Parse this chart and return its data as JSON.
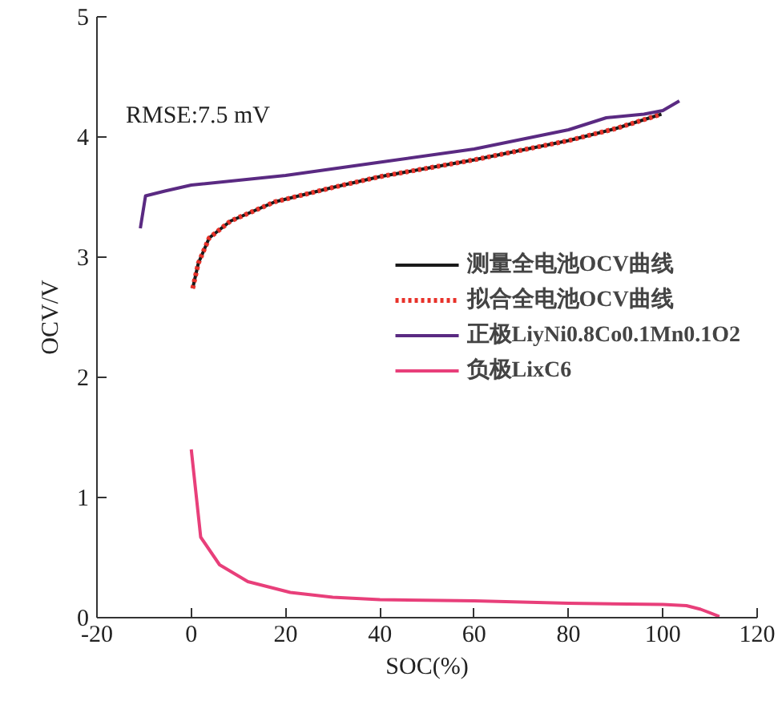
{
  "chart_data": {
    "type": "line",
    "xlabel": "SOC(%)",
    "ylabel": "OCV/V",
    "xlim": [
      -20,
      120
    ],
    "xticks": [
      -20,
      0,
      20,
      40,
      60,
      80,
      100,
      120
    ],
    "ylim": [
      0,
      5
    ],
    "yticks": [
      0,
      1,
      2,
      3,
      4,
      5
    ],
    "grid": false,
    "legend": "right",
    "annotations": [
      "RMSE:7.5 mV"
    ],
    "series": [
      {
        "name": "测量全电池OCV曲线",
        "color": "#1a1a1a",
        "line_style": "solid",
        "x": [
          0.3,
          1.5,
          3.8,
          8.3,
          17.7,
          30,
          40,
          50,
          60,
          70,
          80,
          90,
          99.7
        ],
        "values": [
          2.74,
          2.95,
          3.16,
          3.3,
          3.46,
          3.58,
          3.67,
          3.74,
          3.81,
          3.89,
          3.97,
          4.07,
          4.19
        ]
      },
      {
        "name": "拟合全电池OCV曲线",
        "color": "#e8322a",
        "line_style": "dotted",
        "x": [
          0.3,
          1.5,
          3.8,
          8.3,
          17.7,
          30,
          40,
          50,
          60,
          70,
          80,
          90,
          99.7
        ],
        "values": [
          2.74,
          2.95,
          3.16,
          3.3,
          3.46,
          3.58,
          3.67,
          3.74,
          3.81,
          3.89,
          3.97,
          4.07,
          4.19
        ]
      },
      {
        "name": "正极LiyNi0.8Co0.1Mn0.1O2",
        "color": "#5a2a82",
        "line_style": "solid",
        "x": [
          -10.8,
          -9.7,
          -5.6,
          0,
          20,
          40,
          60,
          80,
          88,
          96,
          100,
          103.5
        ],
        "values": [
          3.24,
          3.51,
          3.55,
          3.6,
          3.68,
          3.79,
          3.9,
          4.06,
          4.16,
          4.19,
          4.22,
          4.3
        ]
      },
      {
        "name": "负极LixC6",
        "color": "#e83f7a",
        "line_style": "solid",
        "x": [
          0,
          2,
          6,
          12,
          21,
          30,
          40,
          60,
          80,
          100,
          105,
          108,
          112
        ],
        "values": [
          1.4,
          0.67,
          0.44,
          0.3,
          0.21,
          0.17,
          0.15,
          0.14,
          0.12,
          0.11,
          0.1,
          0.07,
          0.01
        ]
      }
    ]
  }
}
